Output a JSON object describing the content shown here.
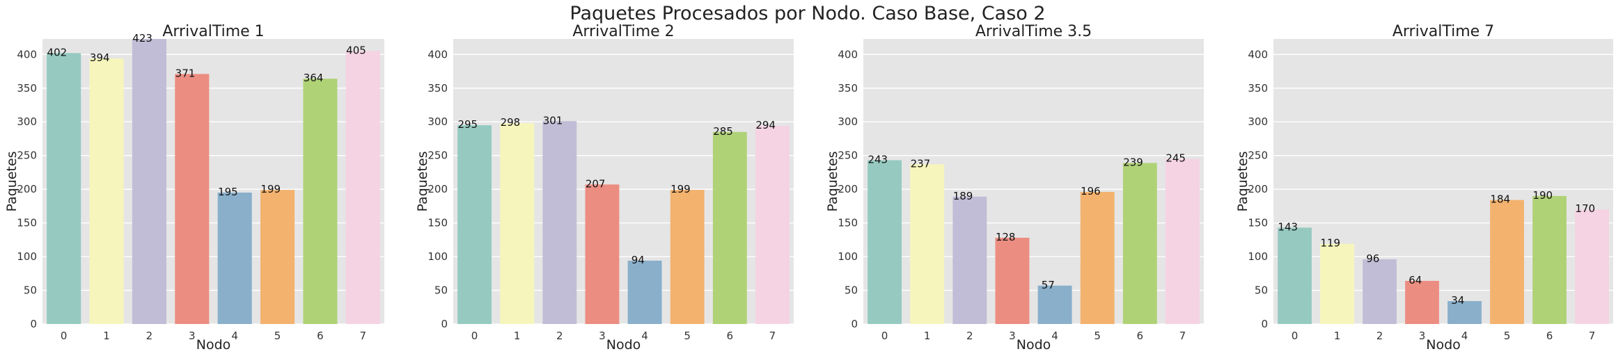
{
  "figure": {
    "title": "Paquetes Procesados por Nodo. Caso Base, Caso 2",
    "palette": [
      "#96cac1",
      "#f6f6bc",
      "#c1bdd6",
      "#ec8d82",
      "#89afcb",
      "#f3b26e",
      "#b0d277",
      "#f5d3e3"
    ]
  },
  "chart_data": [
    {
      "type": "bar",
      "title": "ArrivalTime 1",
      "xlabel": "Nodo",
      "ylabel": "Paquetes",
      "categories": [
        "0",
        "1",
        "2",
        "3",
        "4",
        "5",
        "6",
        "7"
      ],
      "values": [
        402,
        394,
        423,
        371,
        195,
        199,
        364,
        405
      ],
      "ylim": [
        0,
        423
      ],
      "yticks": [
        0,
        50,
        100,
        150,
        200,
        250,
        300,
        350,
        400
      ],
      "grid": true
    },
    {
      "type": "bar",
      "title": "ArrivalTime 2",
      "xlabel": "Nodo",
      "ylabel": "Paquetes",
      "categories": [
        "0",
        "1",
        "2",
        "3",
        "4",
        "5",
        "6",
        "7"
      ],
      "values": [
        295,
        298,
        301,
        207,
        94,
        199,
        285,
        294
      ],
      "ylim": [
        0,
        423
      ],
      "yticks": [
        0,
        50,
        100,
        150,
        200,
        250,
        300,
        350,
        400
      ],
      "grid": true
    },
    {
      "type": "bar",
      "title": "ArrivalTime 3.5",
      "xlabel": "Nodo",
      "ylabel": "Paquetes",
      "categories": [
        "0",
        "1",
        "2",
        "3",
        "4",
        "5",
        "6",
        "7"
      ],
      "values": [
        243,
        237,
        189,
        128,
        57,
        196,
        239,
        245
      ],
      "ylim": [
        0,
        423
      ],
      "yticks": [
        0,
        50,
        100,
        150,
        200,
        250,
        300,
        350,
        400
      ],
      "grid": true
    },
    {
      "type": "bar",
      "title": "ArrivalTime 7",
      "xlabel": "Nodo",
      "ylabel": "Paquetes",
      "categories": [
        "0",
        "1",
        "2",
        "3",
        "4",
        "5",
        "6",
        "7"
      ],
      "values": [
        143,
        119,
        96,
        64,
        34,
        184,
        190,
        170
      ],
      "ylim": [
        0,
        423
      ],
      "yticks": [
        0,
        50,
        100,
        150,
        200,
        250,
        300,
        350,
        400
      ],
      "grid": true
    }
  ]
}
